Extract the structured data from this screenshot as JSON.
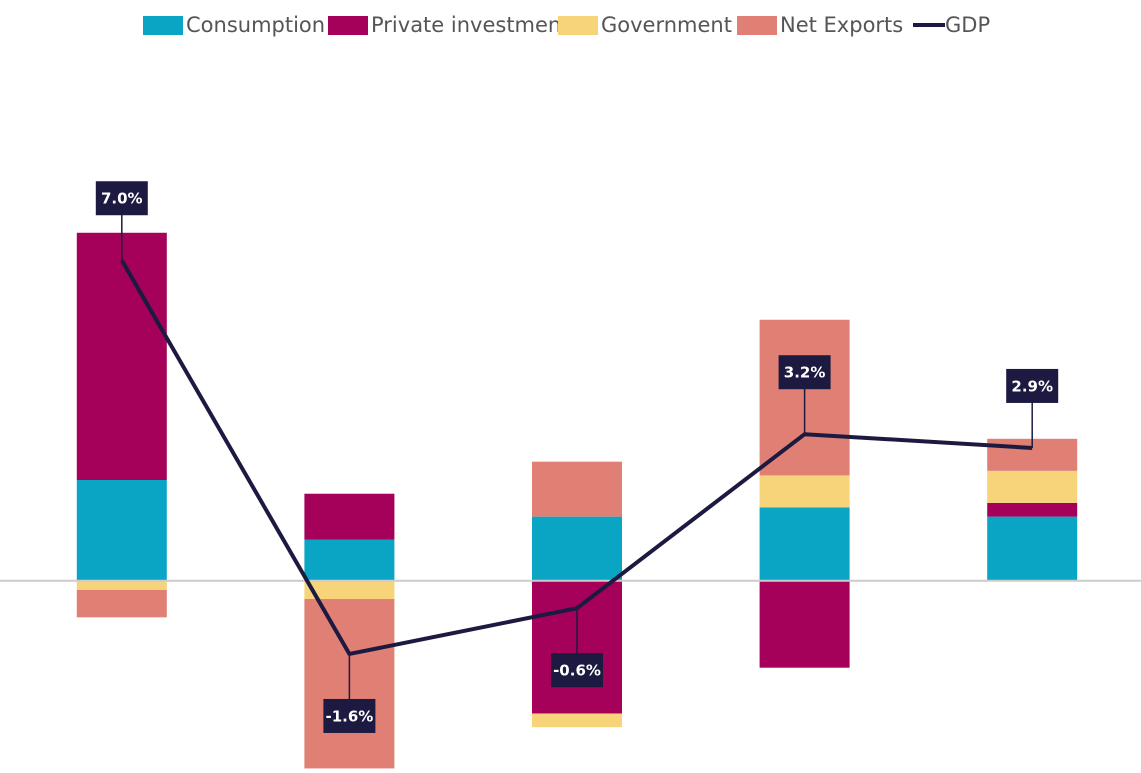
{
  "chart_data": {
    "type": "bar",
    "categories": [
      null,
      null,
      null,
      null,
      null
    ],
    "series": [
      {
        "name": "Consumption",
        "color": "#0aa5c5",
        "values": [
          2.2,
          0.9,
          1.4,
          1.6,
          1.4
        ]
      },
      {
        "name": "Private investment",
        "color": "#a5005a",
        "values": [
          5.4,
          1.0,
          -2.9,
          -1.9,
          0.3
        ]
      },
      {
        "name": "Government",
        "color": "#f7d37a",
        "values": [
          -0.2,
          -0.4,
          -0.3,
          0.7,
          0.7
        ]
      },
      {
        "name": "Net Exports",
        "color": "#e07f74",
        "values": [
          -0.6,
          -3.7,
          1.2,
          3.4,
          0.7
        ]
      },
      {
        "name": "GDP",
        "type": "line",
        "color": "#1c1a40",
        "values": [
          7.0,
          -1.6,
          -0.6,
          3.2,
          2.9
        ],
        "value_labels": [
          "7.0%",
          "-1.6%",
          "-0.6%",
          "3.2%",
          "2.9%"
        ]
      }
    ],
    "ylim": [
      -4.2,
      10.5
    ]
  }
}
